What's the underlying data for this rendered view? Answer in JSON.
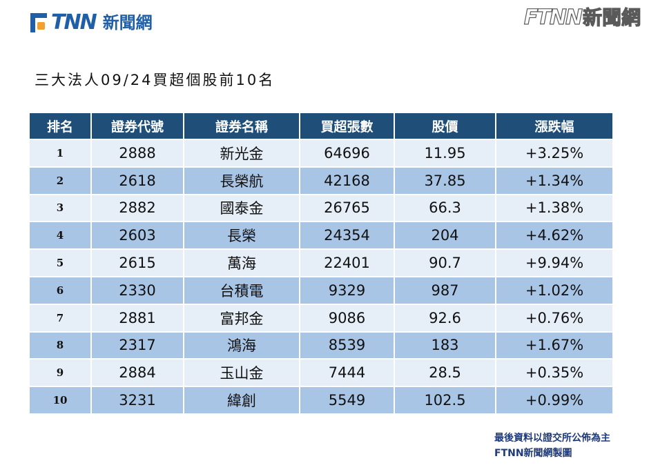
{
  "logo": {
    "letters": "FTNN",
    "cn": "新聞網"
  },
  "watermark": {
    "letters": "FTNN",
    "cn": "新聞網"
  },
  "title": "三大法人09/24買超個股前10名",
  "table": {
    "headers": [
      "排名",
      "證券代號",
      "證券名稱",
      "買超張數",
      "股價",
      "漲跌幅"
    ],
    "rows": [
      {
        "rank": "1",
        "code": "2888",
        "name": "新光金",
        "volume": "64696",
        "price": "11.95",
        "change": "+3.25%"
      },
      {
        "rank": "2",
        "code": "2618",
        "name": "長榮航",
        "volume": "42168",
        "price": "37.85",
        "change": "+1.34%"
      },
      {
        "rank": "3",
        "code": "2882",
        "name": "國泰金",
        "volume": "26765",
        "price": "66.3",
        "change": "+1.38%"
      },
      {
        "rank": "4",
        "code": "2603",
        "name": "長榮",
        "volume": "24354",
        "price": "204",
        "change": "+4.62%"
      },
      {
        "rank": "5",
        "code": "2615",
        "name": "萬海",
        "volume": "22401",
        "price": "90.7",
        "change": "+9.94%"
      },
      {
        "rank": "6",
        "code": "2330",
        "name": "台積電",
        "volume": "9329",
        "price": "987",
        "change": "+1.02%"
      },
      {
        "rank": "7",
        "code": "2881",
        "name": "富邦金",
        "volume": "9086",
        "price": "92.6",
        "change": "+0.76%"
      },
      {
        "rank": "8",
        "code": "2317",
        "name": "鴻海",
        "volume": "8539",
        "price": "183",
        "change": "+1.67%"
      },
      {
        "rank": "9",
        "code": "2884",
        "name": "玉山金",
        "volume": "7444",
        "price": "28.5",
        "change": "+0.35%"
      },
      {
        "rank": "10",
        "code": "3231",
        "name": "緯創",
        "volume": "5549",
        "price": "102.5",
        "change": "+0.99%"
      }
    ]
  },
  "footer": {
    "line1": "最後資料以證交所公佈為主",
    "line2": "FTNN新聞網製圖"
  },
  "colors": {
    "header_bg": "#1f4e79",
    "row_light": "#e6eef8",
    "row_dark": "#a9c5e6",
    "brand": "#1f5fa8",
    "brand_accent": "#f0a030"
  }
}
